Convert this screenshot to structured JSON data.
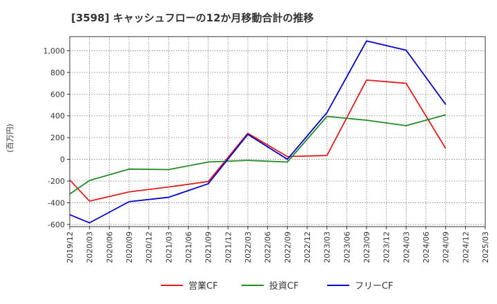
{
  "chart_data": {
    "type": "line",
    "title": "[3598]  キャッシュフローの12か月移動合計の推移",
    "ylabel": "(百万円)",
    "xlabel": "",
    "ylim": [
      -620,
      1130
    ],
    "yticks": [
      -600,
      -400,
      -200,
      0,
      200,
      400,
      600,
      800,
      1000
    ],
    "ytick_labels": [
      "-600",
      "-400",
      "-200",
      "0",
      "200",
      "400",
      "600",
      "800",
      "1,000"
    ],
    "x_labels": [
      "2019/12",
      "2020/03",
      "2020/06",
      "2020/09",
      "2020/12",
      "2021/03",
      "2021/06",
      "2021/09",
      "2021/12",
      "2022/03",
      "2022/06",
      "2022/09",
      "2022/12",
      "2023/03",
      "2023/06",
      "2023/09",
      "2023/12",
      "2024/03",
      "2024/06",
      "2024/09",
      "2024/12",
      "2025/03"
    ],
    "grid": true,
    "legend_position": "bottom",
    "series": [
      {
        "name": "営業CF",
        "color": "#e31a1c",
        "points": [
          [
            0,
            -190
          ],
          [
            1,
            -385
          ],
          [
            3,
            -300
          ],
          [
            5,
            -255
          ],
          [
            7,
            -205
          ],
          [
            9,
            240
          ],
          [
            11,
            25
          ],
          [
            13,
            35
          ],
          [
            15,
            730
          ],
          [
            17,
            700
          ],
          [
            19,
            100
          ]
        ]
      },
      {
        "name": "投資CF",
        "color": "#228b22",
        "points": [
          [
            0,
            -320
          ],
          [
            1,
            -195
          ],
          [
            3,
            -90
          ],
          [
            5,
            -95
          ],
          [
            7,
            -25
          ],
          [
            9,
            -10
          ],
          [
            11,
            -25
          ],
          [
            13,
            395
          ],
          [
            15,
            360
          ],
          [
            17,
            310
          ],
          [
            19,
            410
          ]
        ]
      },
      {
        "name": "フリーCF",
        "color": "#0000cd",
        "points": [
          [
            0,
            -510
          ],
          [
            1,
            -585
          ],
          [
            3,
            -390
          ],
          [
            5,
            -350
          ],
          [
            7,
            -225
          ],
          [
            9,
            230
          ],
          [
            11,
            0
          ],
          [
            13,
            430
          ],
          [
            15,
            1090
          ],
          [
            17,
            1005
          ],
          [
            19,
            505
          ]
        ]
      }
    ]
  }
}
